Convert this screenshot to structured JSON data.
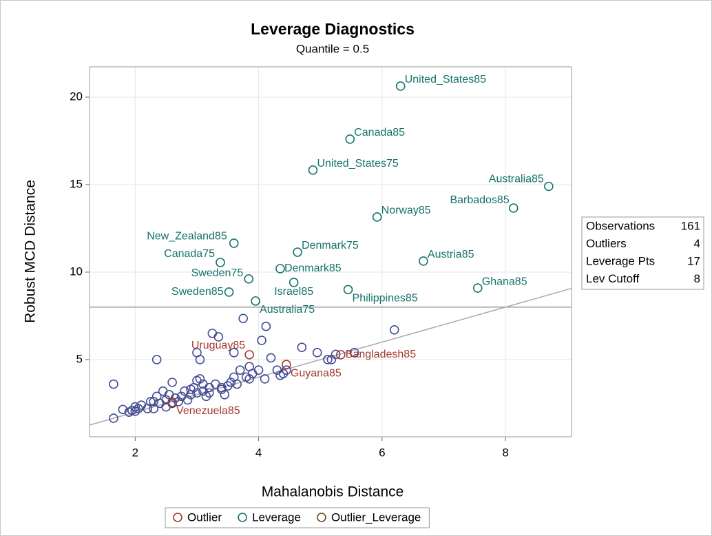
{
  "chart_data": {
    "type": "scatter",
    "title": "Leverage Diagnostics",
    "subtitle": "Quantile = 0.5",
    "x_label": "Mahalanobis Distance",
    "y_label": "Robust MCD Distance",
    "xlim": [
      1.26,
      9.07
    ],
    "ylim": [
      0.59,
      21.73
    ],
    "xticks": [
      2,
      4,
      6,
      8
    ],
    "yticks": [
      5,
      10,
      15,
      20
    ],
    "grid": true,
    "reference_lines": [
      {
        "y": 8
      },
      {
        "slope": 1,
        "intercept": 0
      }
    ],
    "series": [
      {
        "color": "#444c94",
        "x": [
          1.65,
          1.65,
          1.8,
          1.9,
          1.95,
          2.0,
          2.05,
          2.1,
          2.2,
          2.25,
          2.3,
          2.35,
          2.35,
          2.4,
          2.45,
          2.5,
          2.55,
          2.6,
          2.65,
          2.7,
          2.75,
          2.8,
          2.85,
          2.9,
          2.95,
          3.0,
          3.0,
          3.05,
          3.05,
          3.1,
          3.1,
          3.15,
          3.2,
          3.25,
          3.3,
          3.35,
          3.4,
          3.45,
          3.5,
          3.55,
          3.6,
          3.6,
          3.65,
          3.7,
          3.75,
          3.8,
          3.85,
          3.85,
          3.9,
          4.0,
          4.05,
          4.1,
          4.12,
          4.2,
          4.3,
          4.35,
          4.4,
          4.45,
          4.7,
          4.95,
          5.12,
          5.18,
          5.25,
          5.55,
          6.2,
          2.6,
          2.3,
          2.0,
          2.5,
          2.9,
          3.0,
          3.2,
          3.4
        ],
        "values": [
          3.6,
          1.65,
          2.15,
          2.0,
          2.1,
          2.3,
          2.2,
          2.4,
          2.2,
          2.6,
          2.2,
          2.9,
          5.0,
          2.5,
          3.2,
          2.7,
          3.0,
          3.7,
          2.8,
          2.6,
          2.9,
          3.2,
          2.7,
          3.0,
          3.4,
          5.4,
          3.1,
          3.9,
          5.0,
          3.6,
          3.2,
          2.9,
          3.4,
          6.5,
          3.6,
          6.3,
          3.3,
          3.0,
          3.5,
          3.7,
          5.4,
          4.0,
          3.6,
          4.4,
          7.35,
          4.0,
          4.6,
          3.9,
          4.2,
          4.4,
          6.1,
          3.9,
          6.9,
          5.1,
          4.4,
          4.1,
          4.2,
          4.4,
          5.7,
          5.4,
          5.0,
          5.0,
          5.3,
          5.4,
          6.7,
          2.5,
          2.6,
          2.05,
          2.3,
          3.3,
          3.8,
          3.1,
          3.4
        ]
      },
      {
        "name": "Outlier",
        "color": "#a23a2e",
        "x": [
          3.85,
          5.33,
          4.45,
          2.6
        ],
        "values": [
          5.28,
          5.28,
          4.72,
          2.56
        ],
        "labels": [
          "Uruguay85",
          "Bangladesh85",
          "Guyana85",
          "Venezuela85"
        ]
      },
      {
        "name": "Leverage",
        "color": "#14736b",
        "x": [
          6.3,
          5.48,
          4.88,
          8.7,
          8.13,
          5.92,
          3.6,
          4.63,
          3.38,
          6.67,
          4.35,
          3.84,
          4.57,
          5.45,
          7.55,
          3.52,
          3.95
        ],
        "values": [
          20.63,
          17.6,
          15.83,
          14.9,
          13.66,
          13.15,
          11.65,
          11.14,
          10.55,
          10.63,
          10.2,
          9.61,
          9.41,
          9.0,
          9.09,
          8.86,
          8.35
        ],
        "labels": [
          "United_States85",
          "Canada85",
          "United_States75",
          "Australia85",
          "Barbados85",
          "Norway85",
          "New_Zealand85",
          "Denmark75",
          "Canada75",
          "Austria85",
          "Denmark85",
          "Sweden75",
          "Israel85",
          "Philippines85",
          "Ghana85",
          "Sweden85",
          "Australia75"
        ]
      },
      {
        "name": "Outlier_Leverage",
        "color": "#6b4a1f",
        "x": [],
        "values": [],
        "labels": []
      }
    ],
    "inset": {
      "rows": [
        {
          "label": "Observations",
          "value": 161
        },
        {
          "label": "Outliers",
          "value": 4
        },
        {
          "label": "Leverage Pts",
          "value": 17
        },
        {
          "label": "Lev Cutoff",
          "value": 8
        }
      ]
    }
  }
}
